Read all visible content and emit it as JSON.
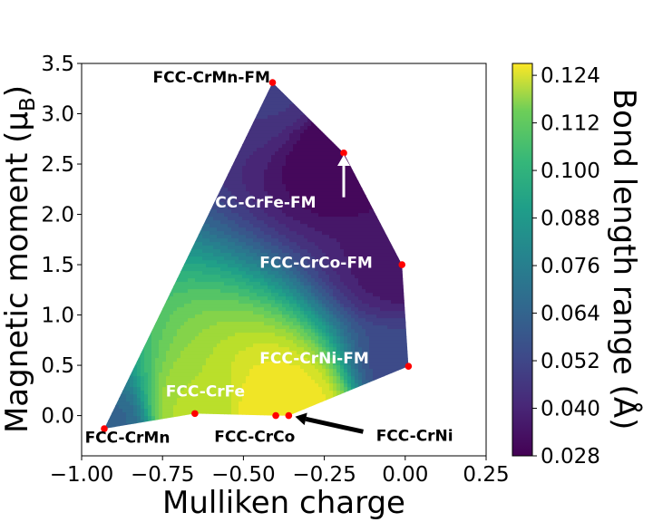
{
  "chart_data": {
    "type": "contour",
    "xlabel": "Mulliken charge",
    "ylabel_main": "Magnetic moment (μ",
    "ylabel_sub": "B",
    "ylabel_close": ")",
    "colorbar_label": "Bond length range (Å)",
    "xlim": [
      -1.0,
      0.25
    ],
    "ylim": [
      -0.4,
      3.5
    ],
    "x_ticks": [
      -1.0,
      -0.75,
      -0.5,
      -0.25,
      0.0,
      0.25
    ],
    "x_tick_labels": [
      "−1.00",
      "−0.75",
      "−0.50",
      "−0.25",
      "0.00",
      "0.25"
    ],
    "y_ticks": [
      0.0,
      0.5,
      1.0,
      1.5,
      2.0,
      2.5,
      3.0,
      3.5
    ],
    "y_tick_labels": [
      "0.0",
      "0.5",
      "1.0",
      "1.5",
      "2.0",
      "2.5",
      "3.0",
      "3.5"
    ],
    "colorbar_range": [
      0.028,
      0.127
    ],
    "colorbar_ticks": [
      0.028,
      0.04,
      0.052,
      0.064,
      0.076,
      0.088,
      0.1,
      0.112,
      0.124
    ],
    "colorbar_tick_labels": [
      "0.028",
      "0.040",
      "0.052",
      "0.064",
      "0.076",
      "0.088",
      "0.100",
      "0.112",
      "0.124"
    ],
    "points": [
      {
        "name": "FCC-CrMn",
        "x": -0.93,
        "y": -0.13,
        "value": 0.06
      },
      {
        "name": "FCC-CrFe",
        "x": -0.65,
        "y": 0.02,
        "value": 0.115
      },
      {
        "name": "FCC-CrCo",
        "x": -0.4,
        "y": 0.0,
        "value": 0.126
      },
      {
        "name": "FCC-CrNi",
        "x": -0.36,
        "y": 0.0,
        "value": 0.126
      },
      {
        "name": "FCC-CrNi-FM",
        "x": 0.01,
        "y": 0.49,
        "value": 0.05
      },
      {
        "name": "FCC-CrCo-FM",
        "x": -0.01,
        "y": 1.5,
        "value": 0.034
      },
      {
        "name": "FCC-CrFe-FM",
        "x": -0.19,
        "y": 2.61,
        "value": 0.028
      },
      {
        "name": "FCC-CrMn-FM",
        "x": -0.41,
        "y": 3.31,
        "value": 0.045
      }
    ],
    "hull_order": [
      "FCC-CrMn",
      "FCC-CrMn-FM",
      "FCC-CrFe-FM",
      "FCC-CrCo-FM",
      "FCC-CrNi-FM",
      "FCC-CrNi",
      "FCC-CrCo",
      "FCC-CrFe"
    ],
    "annotations": [
      {
        "text": "FCC-CrMn-FM",
        "x": -0.78,
        "y": 3.31,
        "color": "#000000"
      },
      {
        "text": "FCC-CrFe-FM",
        "x": -0.62,
        "y": 2.07,
        "color": "#ffffff"
      },
      {
        "text": "FCC-CrCo-FM",
        "x": -0.45,
        "y": 1.47,
        "color": "#ffffff"
      },
      {
        "text": "FCC-CrNi-FM",
        "x": -0.45,
        "y": 0.52,
        "color": "#ffffff"
      },
      {
        "text": "FCC-CrFe",
        "x": -0.74,
        "y": 0.19,
        "color": "#ffffff"
      },
      {
        "text": "FCC-CrMn",
        "x": -0.99,
        "y": -0.27,
        "color": "#000000"
      },
      {
        "text": "FCC-CrCo",
        "x": -0.59,
        "y": -0.26,
        "color": "#000000"
      },
      {
        "text": "FCC-CrNi",
        "x": -0.09,
        "y": -0.25,
        "color": "#000000"
      }
    ],
    "arrows": [
      {
        "color": "#ffffff",
        "from": [
          -0.19,
          2.17
        ],
        "to": [
          -0.19,
          2.59
        ]
      },
      {
        "color": "#000000",
        "from": [
          -0.13,
          -0.16
        ],
        "to": [
          -0.34,
          -0.01
        ]
      }
    ]
  }
}
